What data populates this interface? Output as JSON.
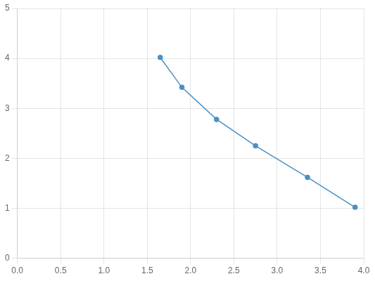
{
  "chart_data": {
    "type": "line",
    "x": [
      1.65,
      1.9,
      2.3,
      2.75,
      3.35,
      3.9
    ],
    "values": [
      4.02,
      3.42,
      2.78,
      2.25,
      1.62,
      1.02
    ],
    "color": "#4a90c4",
    "marker": "circle",
    "xlim": [
      0.0,
      4.0
    ],
    "ylim": [
      0,
      5
    ],
    "xticks": [
      {
        "value": 0.0,
        "label": "0.0"
      },
      0.5,
      {
        "value": 1.0,
        "label": "1.0"
      },
      1.5,
      {
        "value": 2.0,
        "label": "2.0"
      },
      2.5,
      {
        "value": 3.0,
        "label": "3.0"
      },
      3.5,
      {
        "value": 4.0,
        "label": "4.0"
      }
    ],
    "yticks": [
      0,
      1,
      2,
      3,
      4,
      5
    ],
    "grid": true
  }
}
